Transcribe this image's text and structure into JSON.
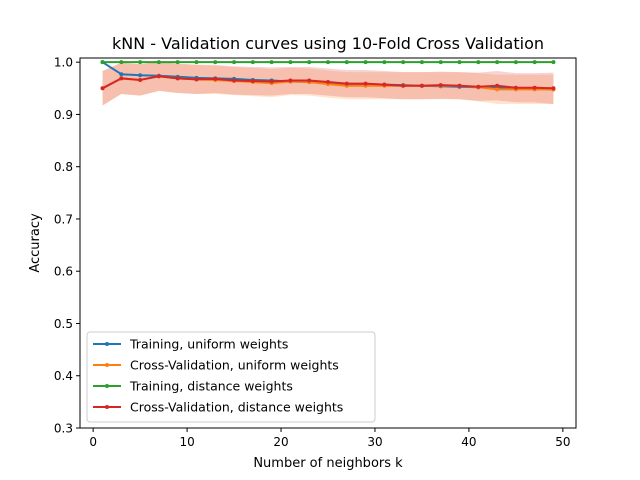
{
  "chart_data": {
    "type": "line",
    "title": "kNN - Validation curves using 10-Fold Cross Validation",
    "xlabel": "Number of neighbors k",
    "ylabel": "Accuracy",
    "xlim": [
      -1.4,
      51.4
    ],
    "ylim": [
      0.3,
      1.008
    ],
    "xticks": [
      0,
      10,
      20,
      30,
      40,
      50
    ],
    "yticks": [
      0.3,
      0.4,
      0.5,
      0.6,
      0.7,
      0.8,
      0.9,
      1.0
    ],
    "xtick_labels": [
      "0",
      "10",
      "20",
      "30",
      "40",
      "50"
    ],
    "ytick_labels": [
      "0.3",
      "0.4",
      "0.5",
      "0.6",
      "0.7",
      "0.8",
      "0.9",
      "1.0"
    ],
    "grid": false,
    "legend_position": "lower-left",
    "x": [
      1,
      3,
      5,
      7,
      9,
      11,
      13,
      15,
      17,
      19,
      21,
      23,
      25,
      27,
      29,
      31,
      33,
      35,
      37,
      39,
      41,
      43,
      45,
      47,
      49
    ],
    "series": [
      {
        "name": "Training, uniform weights",
        "color": "#1f77b4",
        "values": [
          1.0,
          0.977,
          0.975,
          0.974,
          0.972,
          0.97,
          0.969,
          0.968,
          0.966,
          0.965,
          0.963,
          0.962,
          0.96,
          0.958,
          0.958,
          0.957,
          0.956,
          0.955,
          0.954,
          0.953,
          0.952,
          0.951,
          0.95,
          0.949,
          0.948
        ]
      },
      {
        "name": "Cross-Validation, uniform weights",
        "color": "#ff7f0e",
        "values": [
          0.95,
          0.969,
          0.966,
          0.973,
          0.969,
          0.967,
          0.966,
          0.964,
          0.962,
          0.96,
          0.963,
          0.962,
          0.958,
          0.955,
          0.955,
          0.955,
          0.955,
          0.955,
          0.955,
          0.955,
          0.952,
          0.948,
          0.948,
          0.948,
          0.948
        ],
        "band": [
          0.033,
          0.03,
          0.03,
          0.028,
          0.028,
          0.028,
          0.027,
          0.027,
          0.027,
          0.027,
          0.026,
          0.026,
          0.026,
          0.026,
          0.026,
          0.026,
          0.026,
          0.026,
          0.026,
          0.026,
          0.027,
          0.028,
          0.028,
          0.028,
          0.028
        ]
      },
      {
        "name": "Training, distance weights",
        "color": "#2ca02c",
        "values": [
          1.0,
          1.0,
          1.0,
          1.0,
          1.0,
          1.0,
          1.0,
          1.0,
          1.0,
          1.0,
          1.0,
          1.0,
          1.0,
          1.0,
          1.0,
          1.0,
          1.0,
          1.0,
          1.0,
          1.0,
          1.0,
          1.0,
          1.0,
          1.0,
          1.0
        ]
      },
      {
        "name": "Cross-Validation, distance weights",
        "color": "#d62728",
        "values": [
          0.95,
          0.969,
          0.966,
          0.973,
          0.969,
          0.967,
          0.968,
          0.965,
          0.964,
          0.963,
          0.965,
          0.965,
          0.962,
          0.959,
          0.959,
          0.957,
          0.955,
          0.955,
          0.956,
          0.955,
          0.953,
          0.955,
          0.951,
          0.951,
          0.95
        ],
        "band": [
          0.033,
          0.03,
          0.03,
          0.028,
          0.028,
          0.028,
          0.027,
          0.027,
          0.027,
          0.027,
          0.026,
          0.026,
          0.026,
          0.026,
          0.026,
          0.026,
          0.026,
          0.026,
          0.026,
          0.026,
          0.027,
          0.028,
          0.028,
          0.028,
          0.03
        ]
      }
    ]
  }
}
